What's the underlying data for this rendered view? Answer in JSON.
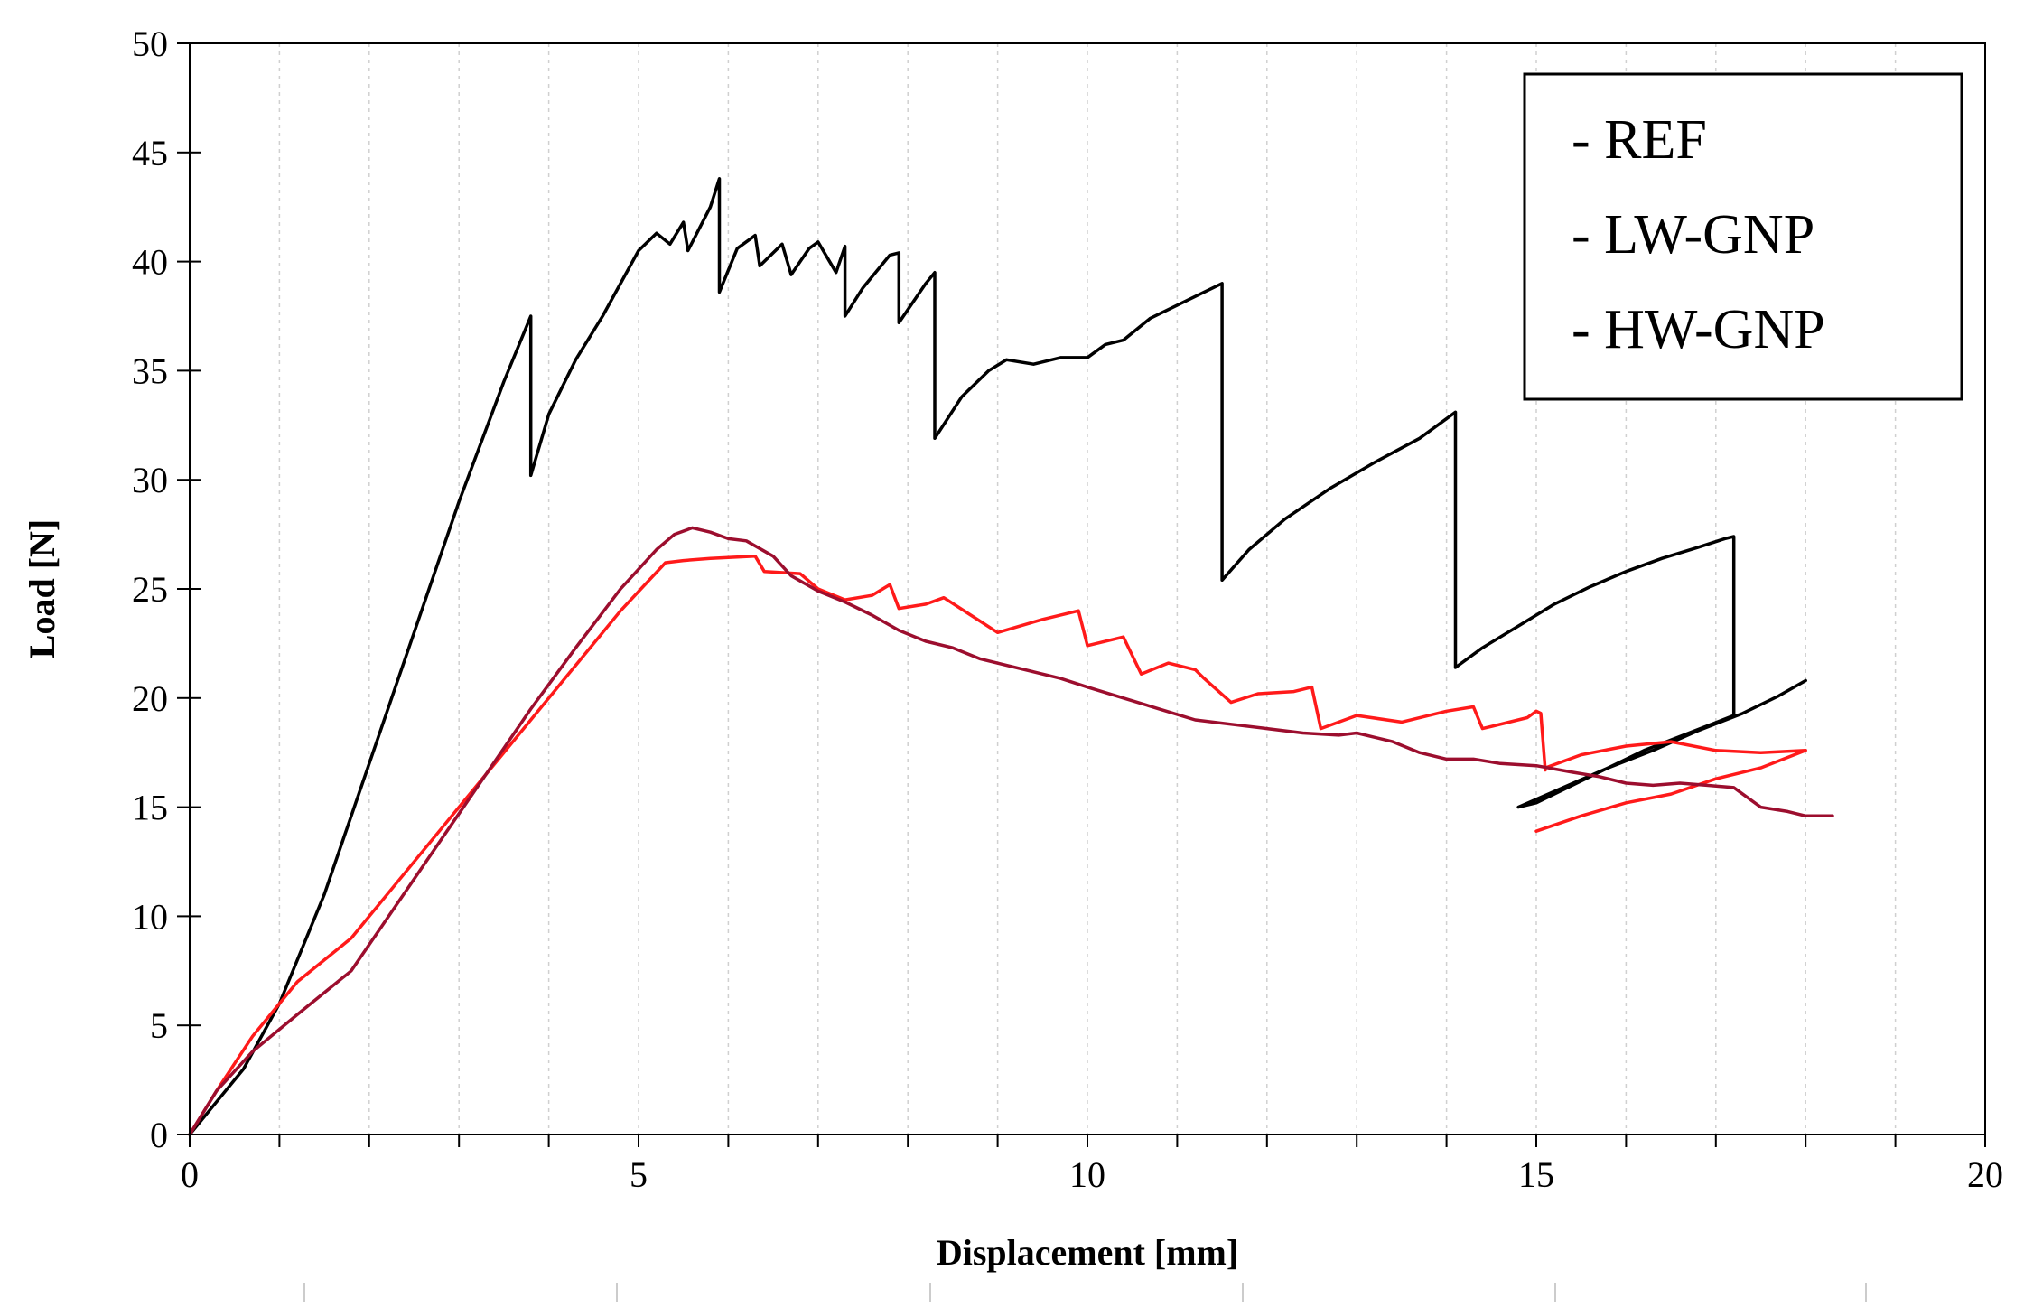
{
  "chart_data": {
    "type": "line",
    "title": "",
    "xlabel": "Displacement [mm]",
    "ylabel": "Load [N]",
    "xlim": [
      0,
      20
    ],
    "ylim": [
      0,
      50
    ],
    "xticks": [
      0,
      5,
      10,
      15,
      20
    ],
    "yticks": [
      0,
      5,
      10,
      15,
      20,
      25,
      30,
      35,
      40,
      45,
      50
    ],
    "grid": "vertical dashed lines at every 1 mm",
    "legend_position": "top-right",
    "series": [
      {
        "name": "REF",
        "legend_label": "- REF",
        "color": "#000000",
        "x": [
          0,
          0.3,
          0.6,
          1.0,
          1.5,
          2.0,
          2.5,
          3.0,
          3.5,
          3.8,
          3.8,
          4.0,
          4.3,
          4.6,
          5.0,
          5.2,
          5.35,
          5.5,
          5.55,
          5.8,
          5.9,
          5.9,
          6.1,
          6.3,
          6.35,
          6.6,
          6.7,
          6.9,
          7.0,
          7.2,
          7.3,
          7.3,
          7.5,
          7.8,
          7.9,
          7.9,
          8.2,
          8.3,
          8.3,
          8.6,
          8.9,
          9.1,
          9.4,
          9.7,
          10.0,
          10.2,
          10.4,
          10.7,
          11.0,
          11.3,
          11.5,
          11.5,
          11.8,
          12.2,
          12.7,
          13.2,
          13.7,
          14.1,
          14.1,
          14.4,
          14.8,
          15.2,
          15.6,
          16.0,
          16.4,
          16.8,
          17.1,
          17.2,
          17.2,
          16.7,
          16.2,
          15.6,
          15.0,
          14.8,
          15.3,
          15.8,
          16.3,
          16.8,
          17.3,
          17.7,
          18.0
        ],
        "y": [
          0,
          1.5,
          3.0,
          6.0,
          11.0,
          17.0,
          23.0,
          29.0,
          34.5,
          37.5,
          30.2,
          33.0,
          35.5,
          37.5,
          40.5,
          41.3,
          40.8,
          41.8,
          40.5,
          42.5,
          43.8,
          38.6,
          40.6,
          41.2,
          39.8,
          40.8,
          39.4,
          40.6,
          40.9,
          39.5,
          40.7,
          37.5,
          38.8,
          40.3,
          40.4,
          37.2,
          39.0,
          39.5,
          31.9,
          33.8,
          35.0,
          35.5,
          35.3,
          35.6,
          35.6,
          36.2,
          36.4,
          37.4,
          38.0,
          38.6,
          39.0,
          25.4,
          26.8,
          28.2,
          29.6,
          30.8,
          31.9,
          33.1,
          21.4,
          22.3,
          23.3,
          24.3,
          25.1,
          25.8,
          26.4,
          26.9,
          27.3,
          27.4,
          19.2,
          18.4,
          17.6,
          16.4,
          15.2,
          15.0,
          15.9,
          16.8,
          17.6,
          18.5,
          19.3,
          20.1,
          20.8
        ]
      },
      {
        "name": "LW-GNP",
        "legend_label": "- LW-GNP",
        "color": "#ff1a1a",
        "x": [
          0,
          0.3,
          0.7,
          1.2,
          1.8,
          2.3,
          2.8,
          3.3,
          3.8,
          4.3,
          4.8,
          5.3,
          5.5,
          5.8,
          6.3,
          6.4,
          6.8,
          7.0,
          7.3,
          7.6,
          7.8,
          7.9,
          8.2,
          8.4,
          8.7,
          9.0,
          9.5,
          9.9,
          10.0,
          10.4,
          10.6,
          10.9,
          11.2,
          11.3,
          11.6,
          11.9,
          12.3,
          12.5,
          12.6,
          13.0,
          13.5,
          14.0,
          14.3,
          14.4,
          14.9,
          15.0,
          15.05,
          15.1,
          15.1,
          15.5,
          16.0,
          16.5,
          17.0,
          17.5,
          18.0,
          17.5,
          17.0,
          16.5,
          16.0,
          15.5,
          15.0
        ],
        "y": [
          0,
          2.0,
          4.5,
          7.0,
          9.0,
          11.5,
          14.0,
          16.5,
          19.0,
          21.5,
          24.0,
          26.2,
          26.3,
          26.4,
          26.5,
          25.8,
          25.7,
          25.0,
          24.5,
          24.7,
          25.2,
          24.1,
          24.3,
          24.6,
          23.8,
          23.0,
          23.6,
          24.0,
          22.4,
          22.8,
          21.1,
          21.6,
          21.3,
          20.9,
          19.8,
          20.2,
          20.3,
          20.5,
          18.6,
          19.2,
          18.9,
          19.4,
          19.6,
          18.6,
          19.1,
          19.4,
          19.3,
          16.7,
          16.8,
          17.4,
          17.8,
          18.0,
          17.6,
          17.5,
          17.6,
          16.8,
          16.3,
          15.6,
          15.2,
          14.6,
          13.9
        ]
      },
      {
        "name": "HW-GNP",
        "legend_label": "- HW-GNP",
        "color": "#9c0e2e",
        "x": [
          0,
          0.3,
          0.7,
          1.2,
          1.8,
          2.3,
          2.8,
          3.3,
          3.8,
          4.3,
          4.8,
          5.2,
          5.4,
          5.6,
          5.8,
          6.0,
          6.2,
          6.5,
          6.7,
          7.0,
          7.3,
          7.6,
          7.9,
          8.2,
          8.5,
          8.8,
          9.1,
          9.4,
          9.7,
          10.0,
          10.4,
          10.8,
          11.2,
          11.6,
          12.0,
          12.4,
          12.8,
          13.0,
          13.4,
          13.7,
          14.0,
          14.3,
          14.6,
          15.0,
          15.4,
          15.7,
          16.0,
          16.3,
          16.6,
          16.9,
          17.2,
          17.5,
          17.8,
          18.0,
          18.3
        ],
        "y": [
          0,
          2.0,
          3.8,
          5.5,
          7.5,
          10.5,
          13.5,
          16.5,
          19.5,
          22.3,
          25.0,
          26.8,
          27.5,
          27.8,
          27.6,
          27.3,
          27.2,
          26.5,
          25.6,
          24.9,
          24.4,
          23.8,
          23.1,
          22.6,
          22.3,
          21.8,
          21.5,
          21.2,
          20.9,
          20.5,
          20.0,
          19.5,
          19.0,
          18.8,
          18.6,
          18.4,
          18.3,
          18.4,
          18.0,
          17.5,
          17.2,
          17.2,
          17.0,
          16.9,
          16.6,
          16.4,
          16.1,
          16.0,
          16.1,
          16.0,
          15.9,
          15.0,
          14.8,
          14.6,
          14.6
        ]
      }
    ]
  }
}
